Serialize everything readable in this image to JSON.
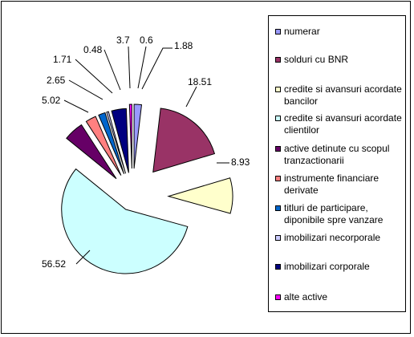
{
  "chart_data": {
    "type": "pie",
    "title": "",
    "legend_position": "right",
    "categories": [
      "numerar",
      "solduri cu BNR",
      "credite si avansuri acordate bancilor",
      "credite si avansuri acordate clientilor",
      "active detinute cu scopul tranzactionarii",
      "instrumente financiare derivate",
      "titluri de participare, diponibile spre vanzare",
      "imobilizari necorporale",
      "imobilizari corporale",
      "alte active"
    ],
    "values": [
      1.88,
      18.51,
      8.93,
      56.52,
      5.02,
      2.65,
      1.71,
      0.48,
      3.7,
      0.6
    ],
    "value_labels": [
      "1.88",
      "18.51",
      "8.93",
      "56.52",
      "5.02",
      "2.65",
      "1.71",
      "0.48",
      "3.7",
      "0.6"
    ],
    "colors": [
      "#9999ff",
      "#993366",
      "#ffffcc",
      "#ccffff",
      "#660066",
      "#ff8080",
      "#0066cc",
      "#ccccff",
      "#000080",
      "#ff00ff"
    ],
    "exploded": true
  },
  "legend": {
    "items": [
      {
        "label": "numerar",
        "color": "#9999ff"
      },
      {
        "label": "solduri cu BNR",
        "color": "#993366"
      },
      {
        "label": "credite si avansuri acordate bancilor",
        "color": "#ffffcc"
      },
      {
        "label": "credite si avansuri acordate clientilor",
        "color": "#ccffff"
      },
      {
        "label": "active detinute cu scopul tranzactionarii",
        "color": "#660066"
      },
      {
        "label": "instrumente financiare derivate",
        "color": "#ff8080"
      },
      {
        "label": "titluri de participare, diponibile spre vanzare",
        "color": "#0066cc"
      },
      {
        "label": "imobilizari necorporale",
        "color": "#ccccff"
      },
      {
        "label": "imobilizari corporale",
        "color": "#000080"
      },
      {
        "label": "alte active",
        "color": "#ff00ff"
      }
    ]
  }
}
